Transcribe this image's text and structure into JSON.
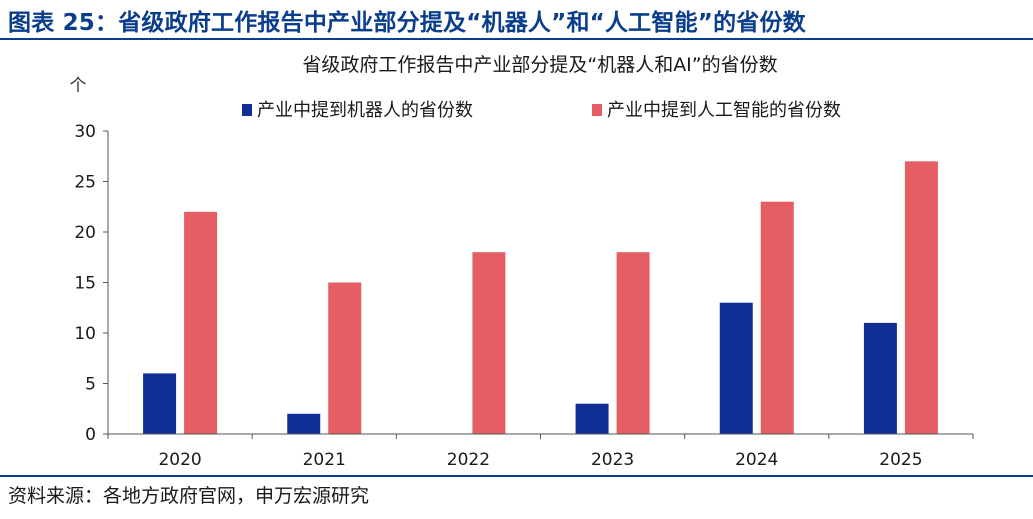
{
  "figure": {
    "title": "图表 25：省级政府工作报告中产业部分提及“机器人”和“人工智能”的省份数",
    "source": "资料来源：各地方政府官网，申万宏源研究"
  },
  "chart_data": {
    "type": "bar",
    "title": "省级政府工作报告中产业部分提及“机器人和AI”的省份数",
    "y_unit": "个",
    "categories": [
      "2020",
      "2021",
      "2022",
      "2023",
      "2024",
      "2025"
    ],
    "series": [
      {
        "name": "产业中提到机器人的省份数",
        "values": [
          6,
          2,
          0,
          3,
          13,
          11
        ],
        "color": "#0f2e96"
      },
      {
        "name": "产业中提到人工智能的省份数",
        "values": [
          22,
          15,
          18,
          18,
          23,
          27
        ],
        "color": "#e45e63"
      }
    ],
    "ylim": [
      0,
      30
    ],
    "yticks": [
      0,
      5,
      10,
      15,
      20,
      25,
      30
    ],
    "grid": false,
    "legend_position": "top"
  }
}
